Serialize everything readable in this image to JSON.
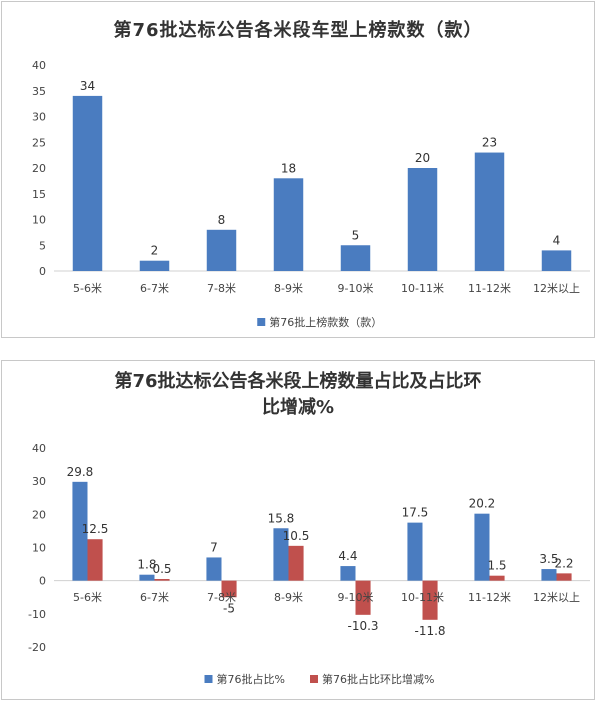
{
  "chart_data": [
    {
      "type": "bar",
      "title": "第76批达标公告各米段车型上榜款数（款）",
      "categories": [
        "5-6米",
        "6-7米",
        "7-8米",
        "8-9米",
        "9-10米",
        "10-11米",
        "11-12米",
        "12米以上"
      ],
      "series": [
        {
          "name": "第76批上榜款数（款）",
          "values": [
            34,
            2,
            8,
            18,
            5,
            20,
            23,
            4
          ],
          "color": "#4a7cc0"
        }
      ],
      "ylim": [
        0,
        40
      ],
      "yticks": [
        "0",
        "5",
        "10",
        "15",
        "20",
        "25",
        "30",
        "35",
        "40"
      ],
      "grid": false,
      "legend": "bottom"
    },
    {
      "type": "bar",
      "title": "第76批达标公告各米段上榜数量占比及占比环比增减%",
      "categories": [
        "5-6米",
        "6-7米",
        "7-8米",
        "8-9米",
        "9-10米",
        "10-11米",
        "11-12米",
        "12米以上"
      ],
      "series": [
        {
          "name": "第76批占比%",
          "values": [
            29.8,
            1.8,
            7,
            15.8,
            4.4,
            17.5,
            20.2,
            3.5
          ],
          "color": "#4a7cc0"
        },
        {
          "name": "第76批占比环比增减%",
          "values": [
            12.5,
            0.5,
            -5,
            10.5,
            -10.3,
            -11.8,
            1.5,
            2.2
          ],
          "color": "#c0504d"
        }
      ],
      "ylim": [
        -20,
        40
      ],
      "yticks": [
        "-20",
        "-10",
        "0",
        "10",
        "20",
        "30",
        "40"
      ],
      "grid": false,
      "legend": "bottom"
    }
  ]
}
